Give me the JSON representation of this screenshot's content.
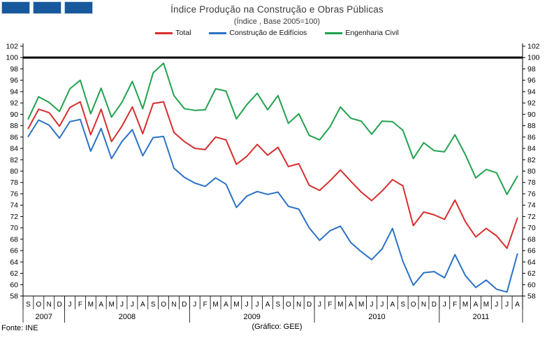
{
  "header": {
    "title": "Índice Produção na Construção e Obras Públicas",
    "subtitle": "(Índice , Base 2005=100)"
  },
  "logo": {
    "square_count": 3,
    "color": "#17599c"
  },
  "legend": [
    {
      "label": "Total",
      "color": "#d62f2f"
    },
    {
      "label": "Construção de Edifícios",
      "color": "#2b72c4"
    },
    {
      "label": "Engenharia Civil",
      "color": "#22a24e"
    }
  ],
  "footer": {
    "source": "Fonte: INE",
    "credit": "(Gráfico: GEE)"
  },
  "chart_data": {
    "type": "line",
    "title": "Índice Produção na Construção e Obras Públicas",
    "subtitle": "(Índice , Base 2005=100)",
    "ylim": [
      58,
      102
    ],
    "ytick_step": 2,
    "grid": false,
    "legend_position": "top",
    "reference_line": {
      "value": 100,
      "color": "#000000"
    },
    "x_month_labels": [
      "S",
      "O",
      "N",
      "D",
      "J",
      "F",
      "M",
      "A",
      "M",
      "J",
      "J",
      "A",
      "S",
      "O",
      "N",
      "D",
      "J",
      "F",
      "M",
      "A",
      "M",
      "J",
      "J",
      "A",
      "S",
      "O",
      "N",
      "D",
      "J",
      "F",
      "M",
      "A",
      "M",
      "J",
      "J",
      "A",
      "S",
      "O",
      "N",
      "D",
      "J",
      "F",
      "M",
      "A",
      "M",
      "J",
      "J",
      "A"
    ],
    "x_year_groups": [
      {
        "label": "2007",
        "months": 4
      },
      {
        "label": "2008",
        "months": 12
      },
      {
        "label": "2009",
        "months": 12
      },
      {
        "label": "2010",
        "months": 12
      },
      {
        "label": "2011",
        "months": 8
      }
    ],
    "series": [
      {
        "name": "Total",
        "color": "#d62f2f",
        "values": [
          87.5,
          90.9,
          90.3,
          87.9,
          91.2,
          92.2,
          86.4,
          90.9,
          85.2,
          87.9,
          91.3,
          86.6,
          91.9,
          92.2,
          86.8,
          85.2,
          84.0,
          83.8,
          86.0,
          85.5,
          81.2,
          82.6,
          84.7,
          82.8,
          84.2,
          80.8,
          81.3,
          77.5,
          76.6,
          78.3,
          80.2,
          78.2,
          76.3,
          74.8,
          76.5,
          78.5,
          77.4,
          70.4,
          72.8,
          72.3,
          71.5,
          74.9,
          71.1,
          68.4,
          69.9,
          68.6,
          66.4,
          71.7
        ]
      },
      {
        "name": "Construção de Edifícios",
        "color": "#2b72c4",
        "values": [
          86.1,
          89.0,
          88.1,
          85.8,
          88.7,
          89.1,
          83.5,
          87.5,
          82.2,
          85.2,
          87.3,
          82.7,
          85.9,
          86.1,
          80.5,
          78.9,
          77.9,
          77.3,
          78.8,
          77.7,
          73.6,
          75.6,
          76.4,
          75.9,
          76.3,
          73.8,
          73.3,
          70.0,
          67.8,
          69.5,
          70.3,
          67.4,
          65.8,
          64.4,
          66.3,
          69.9,
          64.1,
          59.9,
          62.1,
          62.3,
          61.2,
          65.3,
          61.6,
          59.5,
          60.8,
          59.2,
          58.7,
          65.4
        ]
      },
      {
        "name": "Engenharia Civil",
        "color": "#22a24e",
        "values": [
          89.2,
          93.1,
          92.1,
          90.5,
          94.5,
          96.0,
          90.1,
          94.6,
          89.5,
          92.1,
          95.8,
          91.0,
          97.3,
          99.0,
          93.3,
          91.0,
          90.7,
          90.8,
          94.5,
          94.1,
          89.2,
          91.7,
          93.7,
          90.8,
          93.3,
          88.4,
          90.1,
          86.3,
          85.5,
          87.8,
          91.3,
          89.3,
          88.8,
          86.5,
          88.8,
          88.7,
          87.2,
          82.2,
          85.0,
          83.6,
          83.4,
          86.4,
          82.9,
          78.8,
          80.3,
          79.7,
          75.9,
          79.1
        ]
      }
    ]
  }
}
